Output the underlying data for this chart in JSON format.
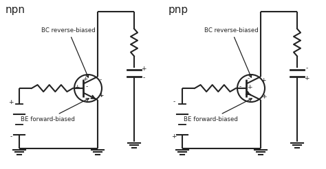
{
  "bg_color": "#ffffff",
  "line_color": "#222222",
  "npn_label": "npn",
  "pnp_label": "pnp",
  "bc_label": "BC reverse-biased",
  "be_label": "BE forward-biased",
  "lw": 1.5,
  "figsize": [
    4.74,
    2.47
  ],
  "dpi": 100
}
